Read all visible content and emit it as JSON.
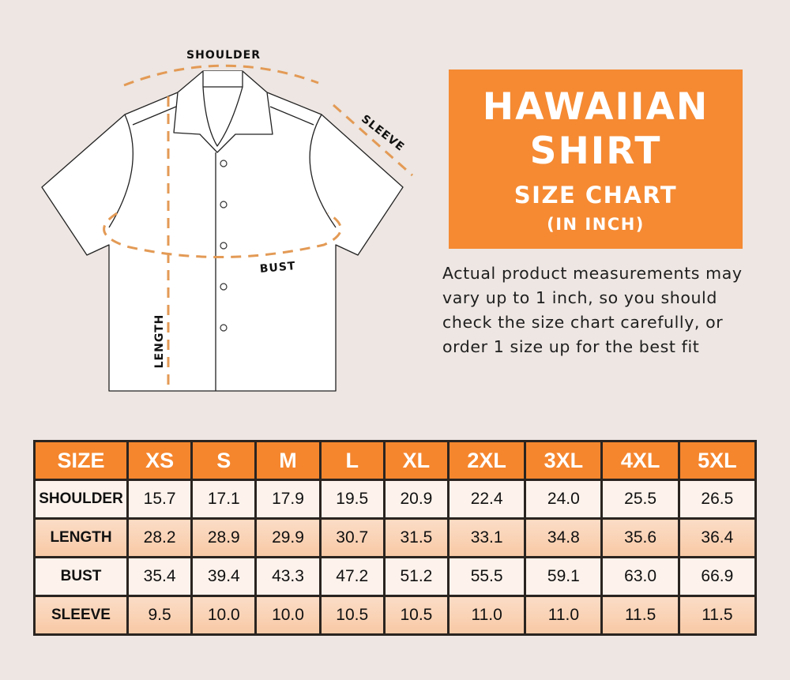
{
  "diagram": {
    "labels": {
      "shoulder": "SHOULDER",
      "sleeve": "SLEEVE",
      "bust": "BUST",
      "length": "LENGTH"
    },
    "dash_color": "#e39a55"
  },
  "title": {
    "line1": "HAWAIIAN",
    "line2": "SHIRT",
    "line3": "SIZE CHART",
    "line4": "(IN INCH)",
    "color": "#f58a33"
  },
  "note": "Actual product measurements may vary up to 1 inch, so you should check the size chart carefully, or order 1 size up for the best fit",
  "table": {
    "headers": [
      "SIZE",
      "XS",
      "S",
      "M",
      "L",
      "XL",
      "2XL",
      "3XL",
      "4XL",
      "5XL"
    ],
    "rows": [
      {
        "label": "SHOULDER",
        "values": [
          "15.7",
          "17.1",
          "17.9",
          "19.5",
          "20.9",
          "22.4",
          "24.0",
          "25.5",
          "26.5"
        ]
      },
      {
        "label": "LENGTH",
        "values": [
          "28.2",
          "28.9",
          "29.9",
          "30.7",
          "31.5",
          "33.1",
          "34.8",
          "35.6",
          "36.4"
        ]
      },
      {
        "label": "BUST",
        "values": [
          "35.4",
          "39.4",
          "43.3",
          "47.2",
          "51.2",
          "55.5",
          "59.1",
          "63.0",
          "66.9"
        ]
      },
      {
        "label": "SLEEVE",
        "values": [
          "9.5",
          "10.0",
          "10.0",
          "10.5",
          "10.5",
          "11.0",
          "11.0",
          "11.5",
          "11.5"
        ]
      }
    ]
  }
}
